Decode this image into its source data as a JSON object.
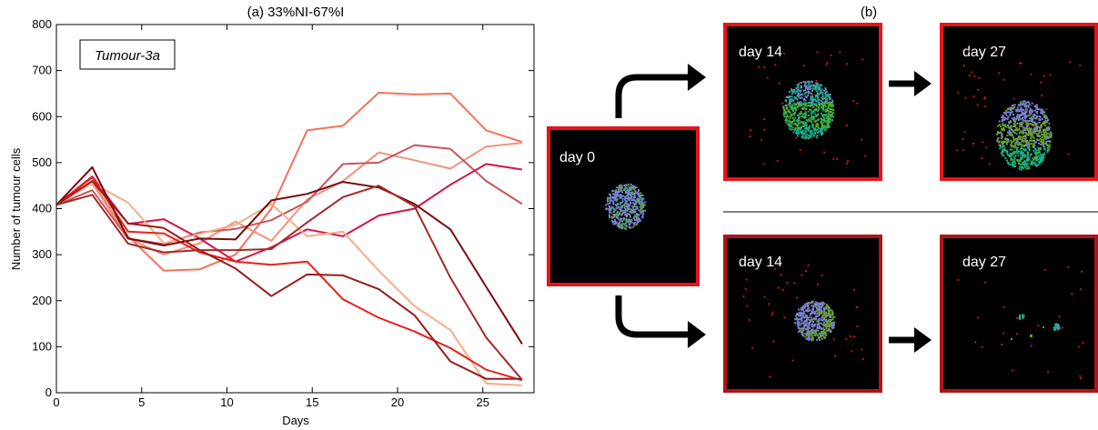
{
  "chart_data": {
    "type": "line",
    "title": "(a)  33%NI-67%I",
    "xlabel": "Days",
    "ylabel": "Number of tumour cells",
    "xlim": [
      0,
      28
    ],
    "ylim": [
      0,
      800
    ],
    "x_ticks": [
      0,
      5,
      10,
      15,
      20,
      25
    ],
    "y_ticks": [
      0,
      100,
      200,
      300,
      400,
      500,
      600,
      700,
      800
    ],
    "grid": false,
    "legend_box": "Tumour-3a",
    "legend_placement": "top-left",
    "x": [
      0,
      2.1,
      4.2,
      6.3,
      8.4,
      10.5,
      12.6,
      14.7,
      16.8,
      18.9,
      21,
      23.1,
      25.2,
      27.3
    ],
    "series": [
      {
        "color": "#f4725a",
        "values": [
          408,
          458,
          340,
          265,
          268,
          300,
          400,
          570,
          580,
          652,
          648,
          650,
          570,
          545
        ]
      },
      {
        "color": "#f0927f",
        "values": [
          408,
          455,
          336,
          300,
          325,
          372,
          330,
          420,
          460,
          522,
          505,
          487,
          535,
          543
        ]
      },
      {
        "color": "#c8555a",
        "values": [
          408,
          440,
          335,
          323,
          348,
          356,
          375,
          415,
          497,
          500,
          538,
          530,
          460,
          410
        ]
      },
      {
        "color": "#d4144a",
        "values": [
          408,
          470,
          367,
          377,
          335,
          285,
          316,
          355,
          340,
          385,
          400,
          452,
          497,
          485
        ]
      },
      {
        "color": "#f7ad88",
        "values": [
          408,
          456,
          413,
          325,
          345,
          365,
          410,
          340,
          350,
          265,
          188,
          136,
          20,
          16
        ]
      },
      {
        "color": "#e8201a",
        "values": [
          408,
          468,
          350,
          346,
          305,
          285,
          278,
          285,
          203,
          163,
          133,
          97,
          50,
          27
        ]
      },
      {
        "color": "#7a0a0a",
        "values": [
          408,
          490,
          335,
          320,
          335,
          333,
          418,
          432,
          458,
          446,
          410,
          355,
          230,
          106
        ]
      },
      {
        "color": "#9b1b1b",
        "values": [
          408,
          460,
          368,
          358,
          310,
          270,
          210,
          257,
          255,
          225,
          168,
          68,
          30,
          30
        ]
      },
      {
        "color": "#a52a2a",
        "values": [
          408,
          430,
          324,
          305,
          310,
          310,
          312,
          370,
          425,
          450,
          405,
          250,
          120,
          28
        ]
      }
    ]
  },
  "panel_b": {
    "label": "(b)",
    "start": {
      "label": "day 0"
    },
    "top_row": [
      {
        "label": "day 14"
      },
      {
        "label": "day 27"
      }
    ],
    "bottom_row": [
      {
        "label": "day 14"
      },
      {
        "label": "day 27"
      }
    ],
    "colors": {
      "frame_start": "#e8141a",
      "frame_top": "#e8141a",
      "frame_bottom": "#b01418",
      "cell_blue": "#7b7fd6",
      "cell_teal": "#19b08a",
      "cell_green": "#5fa80e",
      "debris": "#c0141a"
    }
  }
}
